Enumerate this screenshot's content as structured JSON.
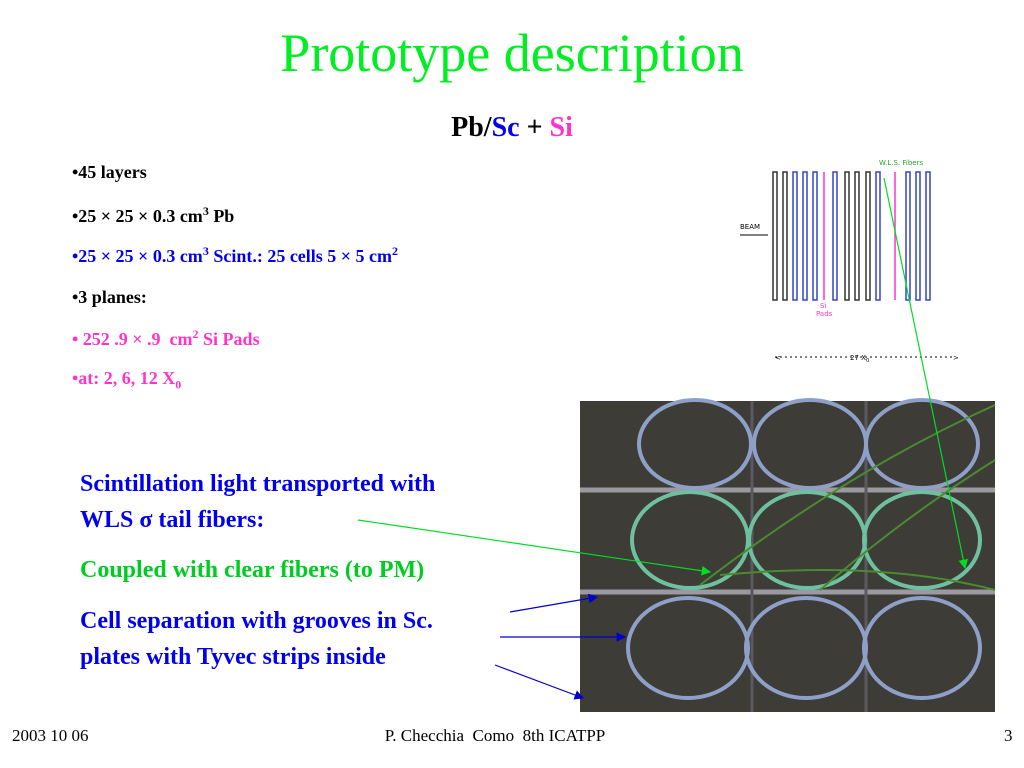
{
  "title": "Prototype description",
  "subtitle": [
    "Pb/",
    "Sc",
    " + ",
    "Si"
  ],
  "bullets": [
    [
      "•45 layers"
    ],
    [
      "•25 × 25 × 0.3 cm",
      "3",
      " Pb"
    ],
    [
      "•25 × 25 × 0.3 cm",
      "3",
      " Scint.: 25 cells 5 × 5 cm",
      "2"
    ],
    [
      "•3 planes:"
    ],
    [
      "• 252 .9 × .9  cm",
      "2",
      " Si Pads"
    ],
    [
      "•at: 2, 6, 12 X",
      "0"
    ]
  ],
  "diagram": {
    "fibers_label": "W.L.S. Fibers",
    "beam_label": "BEAM",
    "si_label": [
      "Si",
      "Pads"
    ],
    "depth_label": [
      "27 X",
      "0"
    ],
    "left_arrow": "<",
    "right_arrow": ">"
  },
  "notes": {
    "scintillation": [
      "Scintillation light transported with",
      "WLS σ tail fibers:"
    ],
    "coupled": "Coupled with clear fibers (to PM)",
    "separation": [
      "Cell separation with grooves in Sc.",
      "plates with Tyvec strips inside"
    ]
  },
  "footer": {
    "date": "2003 10 06",
    "author": "P. Checchia  Como  8th ICATPP",
    "page": "3"
  }
}
